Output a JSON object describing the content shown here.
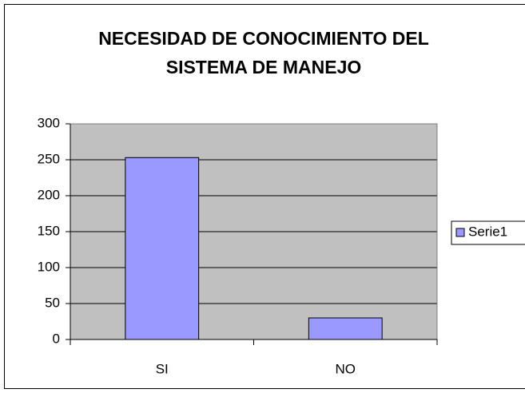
{
  "chart_data": {
    "type": "bar",
    "title": "NECESIDAD DE CONOCIMIENTO DEL SISTEMA DE MANEJO",
    "categories": [
      "SI",
      "NO"
    ],
    "series": [
      {
        "name": "Serie1",
        "color": "#9999ff",
        "values": [
          253,
          30
        ]
      }
    ],
    "ylim": [
      0,
      300
    ],
    "yticks": [
      0,
      50,
      100,
      150,
      200,
      250,
      300
    ],
    "grid": true,
    "legend": "right",
    "plot_background": "#c0c0c0"
  }
}
